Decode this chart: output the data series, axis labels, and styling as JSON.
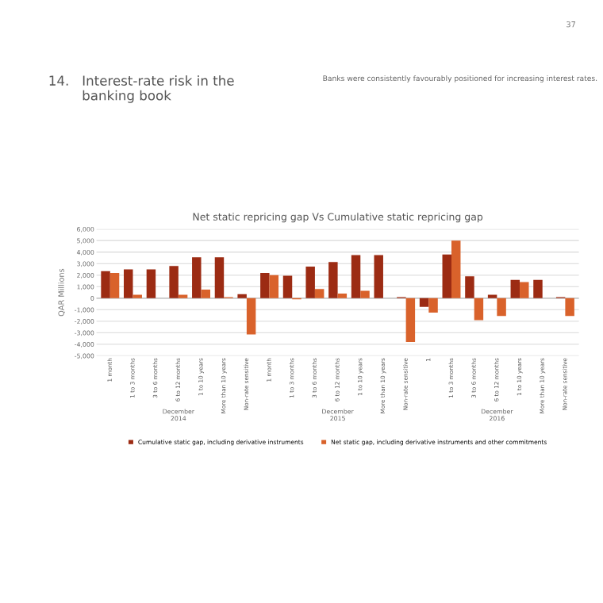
{
  "chart_data": {
    "type": "bar",
    "title": "Net static repricing gap Vs Cumulative static repricing gap",
    "ylabel": "QAR Millions",
    "categories": [
      "1 month",
      "1 to 3 months",
      "3 to 6 months",
      "6 to 12 months",
      "1 to 10 years",
      "More than 10 years",
      "Non-rate sensitive",
      "1 month",
      "1 to 3 months",
      "3 to 6 months",
      "6 to 12 months",
      "1 to 10 years",
      "More than 10 years",
      "Non-rate sensitive",
      "1",
      "1 to 3 months",
      "3 to 6 months",
      "6 to 12 months",
      "1 to 10 years",
      "More than 10 years",
      "Non-rate sensitive"
    ],
    "series": [
      {
        "name": "Cumulative static gap, including derivative instruments",
        "color": "#9c2b13",
        "values": [
          2350,
          2500,
          2500,
          2800,
          3550,
          3550,
          350,
          2200,
          1950,
          2750,
          3150,
          3750,
          3750,
          100,
          -750,
          3800,
          1900,
          300,
          1600,
          1600,
          100
        ]
      },
      {
        "name": "Net static gap, including derivative instruments and other commitments",
        "color": "#d9622b",
        "values": [
          2200,
          300,
          0,
          300,
          750,
          100,
          -3150,
          2000,
          -100,
          800,
          400,
          650,
          0,
          -3800,
          -1250,
          5000,
          -1900,
          -1550,
          1400,
          0,
          -1550
        ]
      }
    ],
    "ylim": [
      -5000,
      6000
    ],
    "yticks": [
      {
        "value": -5000,
        "label": "-5,000"
      },
      {
        "value": -4000,
        "label": "-4,000"
      },
      {
        "value": -3000,
        "label": "-3,000"
      },
      {
        "value": -2000,
        "label": "-2,000"
      },
      {
        "value": -1000,
        "label": "-1,000"
      },
      0,
      {
        "value": 1000,
        "label": "1,000"
      },
      {
        "value": 2000,
        "label": "2,000"
      },
      {
        "value": 3000,
        "label": "3,000"
      },
      {
        "value": 4000,
        "label": "4,000"
      },
      {
        "value": 5000,
        "label": "5,000"
      },
      {
        "value": 6000,
        "label": "6,000"
      }
    ],
    "grid": "y",
    "legend": "bottom",
    "annotations": [
      "37",
      "14.   Interest-rate risk in the\n        banking book",
      "Banks were consistently favourably positioned for increasing interest rates.",
      "December\n2014",
      "December\n2015",
      "December\n2016"
    ]
  }
}
